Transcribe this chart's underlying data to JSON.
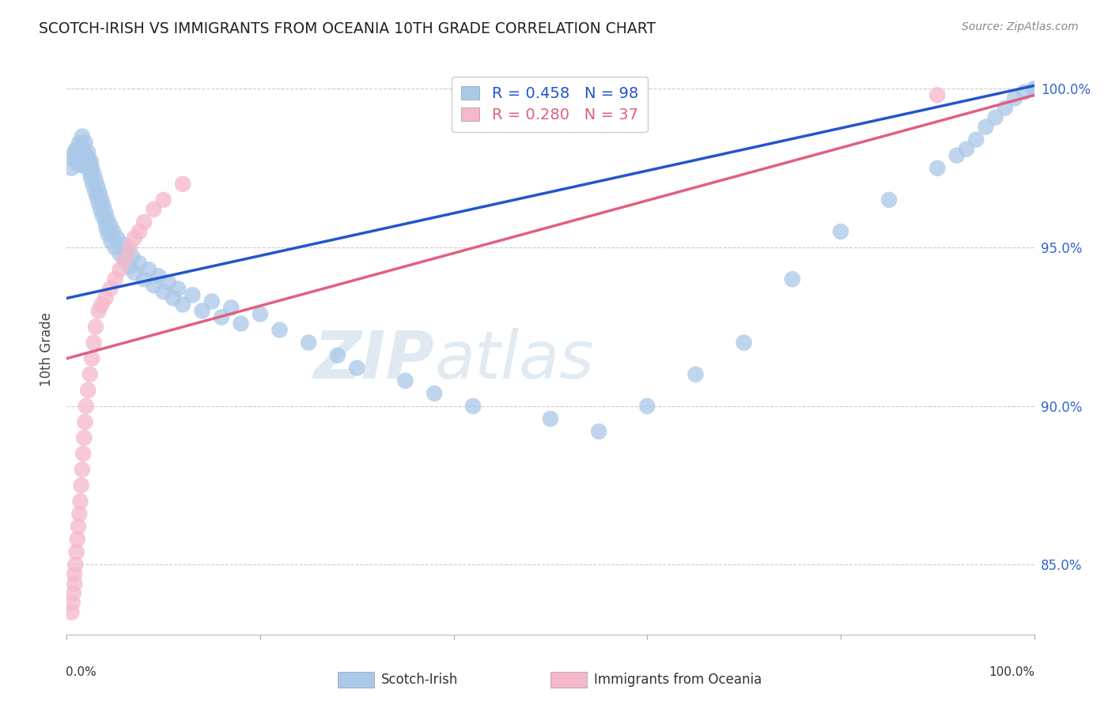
{
  "title": "SCOTCH-IRISH VS IMMIGRANTS FROM OCEANIA 10TH GRADE CORRELATION CHART",
  "source": "Source: ZipAtlas.com",
  "ylabel": "10th Grade",
  "xlim": [
    0.0,
    1.0
  ],
  "ylim": [
    0.828,
    1.008
  ],
  "ytick_vals": [
    0.85,
    0.9,
    0.95,
    1.0
  ],
  "ytick_labels": [
    "85.0%",
    "90.0%",
    "95.0%",
    "100.0%"
  ],
  "blue_R": 0.458,
  "blue_N": 98,
  "pink_R": 0.28,
  "pink_N": 37,
  "blue_color": "#aac8e8",
  "pink_color": "#f5b8cb",
  "blue_line_color": "#2255cc",
  "pink_line_color": "#e06080",
  "watermark_zip": "ZIP",
  "watermark_atlas": "atlas",
  "blue_line_x0": 0.0,
  "blue_line_y0": 0.934,
  "blue_line_x1": 1.0,
  "blue_line_y1": 1.001,
  "pink_line_x0": 0.0,
  "pink_line_y0": 0.915,
  "pink_line_x1": 1.0,
  "pink_line_y1": 0.998,
  "blue_scatter_x": [
    0.005,
    0.007,
    0.008,
    0.009,
    0.01,
    0.011,
    0.012,
    0.013,
    0.013,
    0.014,
    0.015,
    0.016,
    0.017,
    0.018,
    0.018,
    0.019,
    0.02,
    0.02,
    0.021,
    0.022,
    0.022,
    0.023,
    0.024,
    0.025,
    0.025,
    0.026,
    0.027,
    0.028,
    0.029,
    0.03,
    0.031,
    0.032,
    0.033,
    0.034,
    0.035,
    0.036,
    0.037,
    0.038,
    0.04,
    0.04,
    0.041,
    0.042,
    0.043,
    0.045,
    0.046,
    0.048,
    0.05,
    0.052,
    0.055,
    0.058,
    0.06,
    0.062,
    0.065,
    0.068,
    0.07,
    0.075,
    0.08,
    0.085,
    0.09,
    0.095,
    0.1,
    0.105,
    0.11,
    0.115,
    0.12,
    0.13,
    0.14,
    0.15,
    0.16,
    0.17,
    0.18,
    0.2,
    0.22,
    0.25,
    0.28,
    0.3,
    0.35,
    0.38,
    0.42,
    0.5,
    0.55,
    0.6,
    0.65,
    0.7,
    0.75,
    0.8,
    0.85,
    0.9,
    0.92,
    0.93,
    0.94,
    0.95,
    0.96,
    0.97,
    0.98,
    0.99,
    1.0,
    1.0
  ],
  "blue_scatter_y": [
    0.975,
    0.978,
    0.98,
    0.979,
    0.981,
    0.977,
    0.98,
    0.983,
    0.976,
    0.979,
    0.982,
    0.985,
    0.978,
    0.976,
    0.98,
    0.983,
    0.976,
    0.979,
    0.977,
    0.98,
    0.975,
    0.978,
    0.974,
    0.977,
    0.972,
    0.975,
    0.97,
    0.973,
    0.968,
    0.971,
    0.966,
    0.969,
    0.964,
    0.967,
    0.962,
    0.965,
    0.96,
    0.963,
    0.958,
    0.961,
    0.956,
    0.959,
    0.954,
    0.957,
    0.952,
    0.955,
    0.95,
    0.953,
    0.948,
    0.951,
    0.946,
    0.949,
    0.944,
    0.947,
    0.942,
    0.945,
    0.94,
    0.943,
    0.938,
    0.941,
    0.936,
    0.939,
    0.934,
    0.937,
    0.932,
    0.935,
    0.93,
    0.933,
    0.928,
    0.931,
    0.926,
    0.929,
    0.924,
    0.92,
    0.916,
    0.912,
    0.908,
    0.904,
    0.9,
    0.896,
    0.892,
    0.9,
    0.91,
    0.92,
    0.94,
    0.955,
    0.965,
    0.975,
    0.979,
    0.981,
    0.984,
    0.988,
    0.991,
    0.994,
    0.997,
    0.999,
    1.0,
    1.0
  ],
  "pink_scatter_x": [
    0.005,
    0.006,
    0.007,
    0.008,
    0.008,
    0.009,
    0.01,
    0.011,
    0.012,
    0.013,
    0.014,
    0.015,
    0.016,
    0.017,
    0.018,
    0.019,
    0.02,
    0.022,
    0.024,
    0.026,
    0.028,
    0.03,
    0.033,
    0.036,
    0.04,
    0.045,
    0.05,
    0.055,
    0.06,
    0.065,
    0.07,
    0.075,
    0.08,
    0.09,
    0.1,
    0.12,
    0.9
  ],
  "pink_scatter_y": [
    0.835,
    0.838,
    0.841,
    0.844,
    0.847,
    0.85,
    0.854,
    0.858,
    0.862,
    0.866,
    0.87,
    0.875,
    0.88,
    0.885,
    0.89,
    0.895,
    0.9,
    0.905,
    0.91,
    0.915,
    0.92,
    0.925,
    0.93,
    0.932,
    0.934,
    0.937,
    0.94,
    0.943,
    0.946,
    0.95,
    0.953,
    0.955,
    0.958,
    0.962,
    0.965,
    0.97,
    0.998
  ]
}
